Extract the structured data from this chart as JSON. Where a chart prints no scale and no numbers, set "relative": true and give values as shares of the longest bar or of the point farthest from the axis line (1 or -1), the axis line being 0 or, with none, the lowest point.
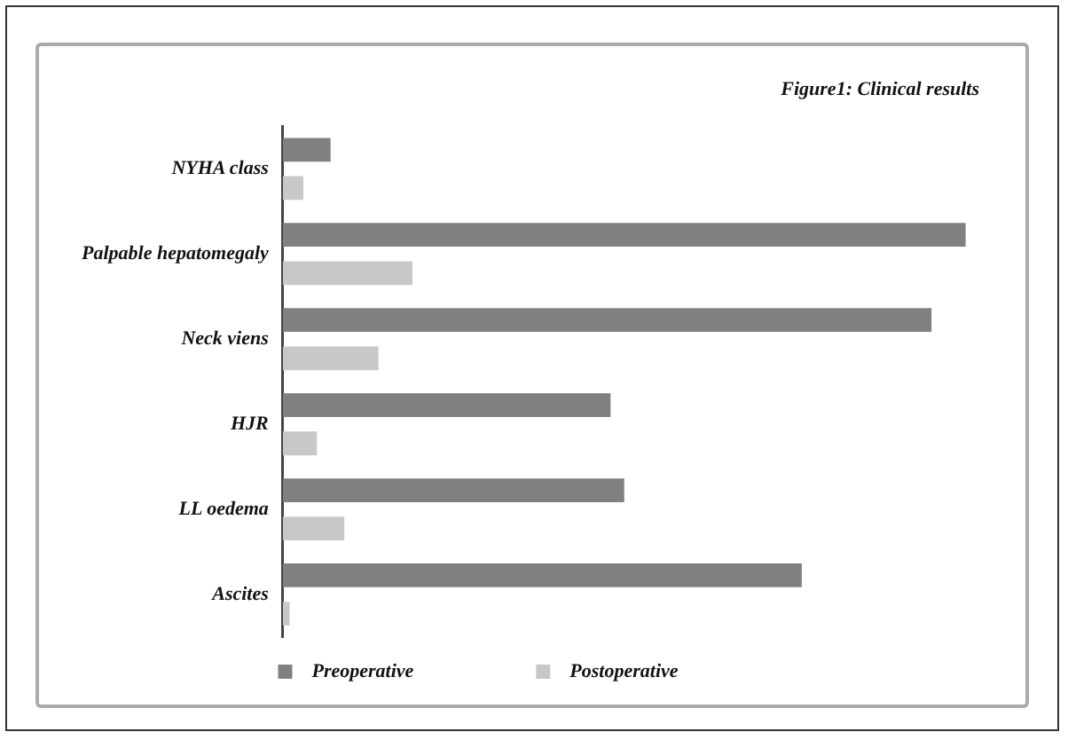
{
  "chart_data": {
    "type": "bar",
    "orientation": "horizontal",
    "relative": true,
    "title": "Figure1: Clinical results",
    "categories": [
      "NYHA class",
      "Palpable hepatomegaly",
      "Neck viens",
      "HJR",
      "LL oedema",
      "Ascites"
    ],
    "series": [
      {
        "name": "Preoperative",
        "color": "#808080",
        "values": [
          0.07,
          1,
          0.95,
          0.48,
          0.5,
          0.76
        ]
      },
      {
        "name": "Postoperative",
        "color": "#c8c8c8",
        "values": [
          0.03,
          0.19,
          0.14,
          0.05,
          0.09,
          0.01
        ]
      }
    ],
    "legend": "bottom"
  }
}
